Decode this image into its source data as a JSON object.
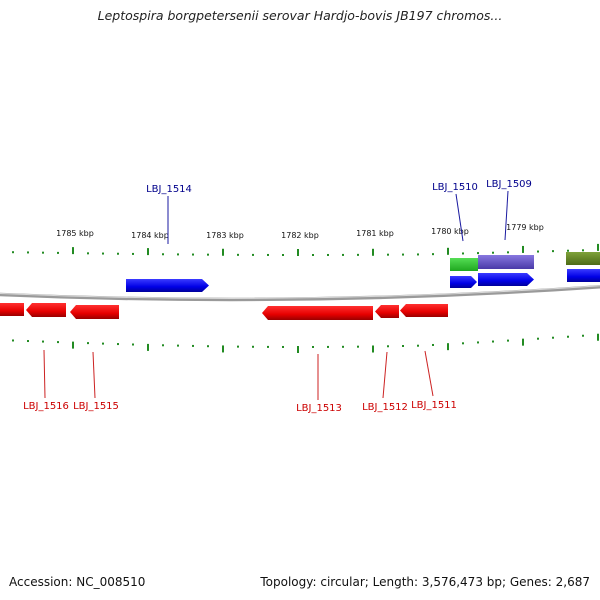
{
  "title": "Leptospira borgpetersenii serovar Hardjo-bovis JB197 chromos...",
  "footer": {
    "accession": "Accession: NC_008510",
    "topology": "Topology: circular; Length: 3,576,473 bp; Genes: 2,687"
  },
  "scale_labels": [
    "1785 kbp",
    "1784 kbp",
    "1783 kbp",
    "1782 kbp",
    "1781 kbp",
    "1780 kbp",
    "1779 kbp"
  ],
  "gene_labels_forward": [
    "LBJ_1514",
    "LBJ_1510",
    "LBJ_1509"
  ],
  "gene_labels_reverse": [
    "LBJ_1516",
    "LBJ_1515",
    "LBJ_1513",
    "LBJ_1512",
    "LBJ_1511"
  ],
  "colors": {
    "forward_gene": "#0000ee",
    "reverse_gene": "#ee0000",
    "forward_label": "#00008b",
    "reverse_label": "#cc0000",
    "tick": "#228b22",
    "backbone": "#888888",
    "feature_green": "#33cc33",
    "feature_purple": "#6a5acd",
    "feature_olive": "#6b8e23"
  }
}
